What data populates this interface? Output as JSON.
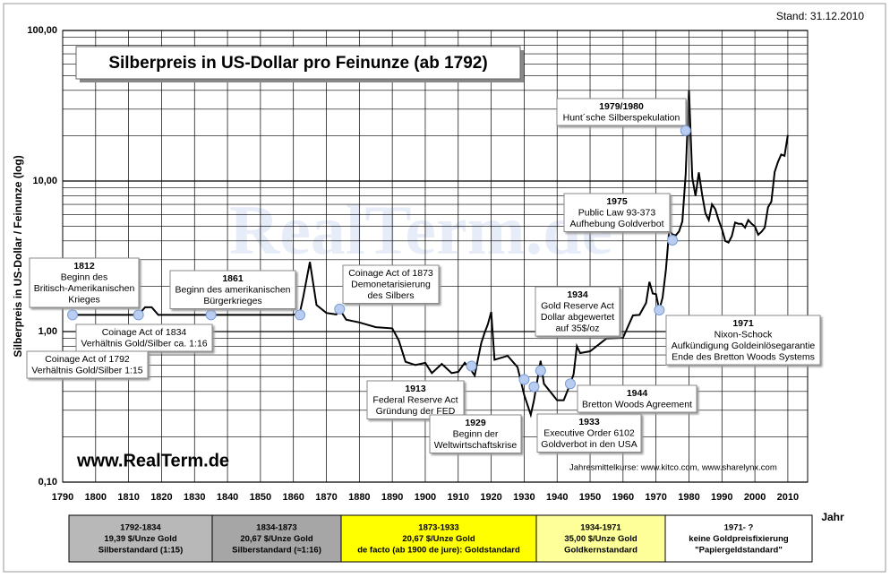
{
  "chart_data": {
    "type": "line",
    "title": "Silberpreis in US-Dollar pro Feinunze (ab 1792)",
    "stand": "Stand: 31.12.2010",
    "ylabel": "Silberpreis in US-Dollar / Feinunze (log)",
    "xlabel": "Jahr",
    "website": "www.RealTerm.de",
    "watermark": "RealTerm.de",
    "source": "Jahresmittelkurse: www.kitco.com, www.sharelynx.com",
    "log_scale": true,
    "grid": true,
    "color": "#000000",
    "xlim": [
      1790,
      2016
    ],
    "ylim": [
      0.1,
      100
    ],
    "xticks": [
      1790,
      1800,
      1810,
      1820,
      1830,
      1840,
      1850,
      1860,
      1870,
      1880,
      1890,
      1900,
      1910,
      1920,
      1930,
      1940,
      1950,
      1960,
      1970,
      1980,
      1990,
      2000,
      2010
    ],
    "yticks": [
      {
        "value": 0.1,
        "label": "0,10"
      },
      {
        "value": 1,
        "label": "1,00"
      },
      {
        "value": 10,
        "label": "10,00"
      },
      {
        "value": 100,
        "label": "100,00"
      }
    ],
    "x": [
      1792,
      1800,
      1810,
      1813,
      1815,
      1817,
      1819,
      1830,
      1840,
      1850,
      1860,
      1862,
      1863,
      1865,
      1867,
      1870,
      1873,
      1874,
      1876,
      1880,
      1885,
      1890,
      1892,
      1894,
      1897,
      1900,
      1902,
      1905,
      1908,
      1910,
      1912,
      1914,
      1915,
      1916,
      1917,
      1918,
      1919,
      1920,
      1921,
      1925,
      1928,
      1930,
      1932,
      1933,
      1935,
      1936,
      1940,
      1942,
      1944,
      1945,
      1946,
      1947,
      1950,
      1955,
      1960,
      1963,
      1965,
      1967,
      1968,
      1969,
      1970,
      1971,
      1972,
      1973,
      1974,
      1975,
      1976,
      1977,
      1978,
      1979,
      1980,
      1981,
      1982,
      1983,
      1984,
      1985,
      1986,
      1987,
      1988,
      1989,
      1990,
      1991,
      1992,
      1993,
      1994,
      1995,
      1996,
      1997,
      1998,
      1999,
      2000,
      2001,
      2002,
      2003,
      2004,
      2005,
      2006,
      2007,
      2008,
      2009,
      2010
    ],
    "values": [
      1.29,
      1.29,
      1.29,
      1.29,
      1.45,
      1.45,
      1.29,
      1.29,
      1.29,
      1.29,
      1.29,
      1.35,
      1.7,
      2.9,
      1.5,
      1.33,
      1.3,
      1.41,
      1.2,
      1.15,
      1.07,
      1.05,
      0.87,
      0.63,
      0.6,
      0.62,
      0.53,
      0.61,
      0.53,
      0.54,
      0.62,
      0.55,
      0.51,
      0.66,
      0.84,
      0.98,
      1.12,
      1.35,
      0.65,
      0.69,
      0.58,
      0.38,
      0.28,
      0.35,
      0.64,
      0.45,
      0.35,
      0.35,
      0.45,
      0.52,
      0.8,
      0.72,
      0.74,
      0.9,
      0.91,
      1.28,
      1.29,
      1.55,
      2.14,
      1.79,
      1.77,
      1.39,
      1.68,
      2.56,
      4.71,
      4.42,
      4.35,
      4.62,
      5.4,
      11.09,
      40,
      10.5,
      7.95,
      11.4,
      8.1,
      6.1,
      5.5,
      7.0,
      6.5,
      5.5,
      4.8,
      4.0,
      3.9,
      4.3,
      5.3,
      5.2,
      5.2,
      4.9,
      5.5,
      5.2,
      5.0,
      4.4,
      4.6,
      4.9,
      6.7,
      7.3,
      11.5,
      13.4,
      15.0,
      14.7,
      20.2
    ],
    "annotations": [
      {
        "lines": [
          "1812",
          "Beginn des",
          "Britisch-Amerikanischen",
          "Krieges"
        ],
        "x": 1813,
        "value": 1.29
      },
      {
        "lines": [
          "Coinage Act of 1834",
          "Verhältnis Gold/Silber ca. 1:16"
        ],
        "x": 1835,
        "value": 1.29
      },
      {
        "lines": [
          "Coinage Act of 1792",
          "Verhältnis Gold/Silber 1:15"
        ],
        "x": 1793,
        "value": 1.29
      },
      {
        "lines": [
          "1861",
          "Beginn des amerikanischen",
          "Bürgerkrieges"
        ],
        "x": 1862,
        "value": 1.29
      },
      {
        "lines": [
          "Coinage Act of 1873",
          "Demonetarisierung",
          "des Silbers"
        ],
        "x": 1874,
        "value": 1.41
      },
      {
        "lines": [
          "1913",
          "Federal Reserve Act",
          "Gründung der FED"
        ],
        "x": 1914,
        "value": 0.59
      },
      {
        "lines": [
          "1929",
          "Beginn der",
          "Weltwirtschaftskrise"
        ],
        "x": 1930,
        "value": 0.48
      },
      {
        "lines": [
          "1933",
          "Executive Order 6102",
          "Goldverbot in den USA"
        ],
        "x": 1933,
        "value": 0.43
      },
      {
        "lines": [
          "1934",
          "Gold Reserve Act",
          "Dollar abgewertet",
          "auf 35$/oz"
        ],
        "x": 1935,
        "value": 0.55
      },
      {
        "lines": [
          "1944",
          "Bretton Woods Agreement"
        ],
        "x": 1944,
        "value": 0.45
      },
      {
        "lines": [
          "1971",
          "Nixon-Schock",
          "Aufkündigung Goldeinlösegarantie",
          "Ende des Bretton Woods Systems"
        ],
        "x": 1971,
        "value": 1.39
      },
      {
        "lines": [
          "1975",
          "Public Law 93-373",
          "Aufhebung Goldverbot"
        ],
        "x": 1975,
        "value": 4.05
      },
      {
        "lines": [
          "1979/1980",
          "Hunt´sche Silberspekulation"
        ],
        "x": 1979,
        "value": 21.6
      }
    ],
    "periods": [
      {
        "lines": [
          "1792-1834",
          "19,39 $/Unze Gold",
          "Silberstandard (1:15)"
        ],
        "color": "#b8b8b8"
      },
      {
        "lines": [
          "1834-1873",
          "20,67 $/Unze Gold",
          "Silberstandard (≈1:16)"
        ],
        "color": "#a6a6a6"
      },
      {
        "lines": [
          "1873-1933",
          "20,67 $/Unze Gold",
          "de facto (ab 1900 de jure): Goldstandard"
        ],
        "color": "#ffff00"
      },
      {
        "lines": [
          "1934-1971",
          "35,00 $/Unze Gold",
          "Goldkernstandard"
        ],
        "color": "#ffff99"
      },
      {
        "lines": [
          "1971-  ?",
          "keine Goldpreisfixierung",
          "\"Papiergeldstandard\""
        ],
        "color": "#ffffff"
      }
    ]
  }
}
